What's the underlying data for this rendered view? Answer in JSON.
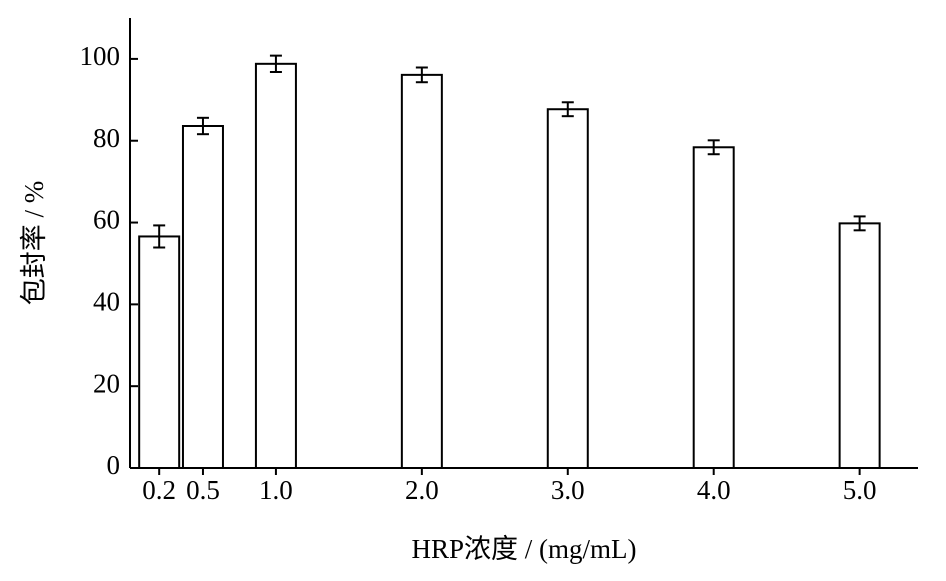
{
  "chart_data": {
    "type": "bar",
    "x_label": "HRP浓度 / (mg/mL)",
    "y_label": "包封率 / %",
    "x": [
      0.2,
      0.5,
      1.0,
      2.0,
      3.0,
      4.0,
      5.0
    ],
    "values": [
      56.6,
      83.6,
      98.8,
      96.1,
      87.7,
      78.4,
      59.8
    ],
    "errors": [
      2.7,
      2.0,
      2.0,
      1.8,
      1.7,
      1.7,
      1.7
    ],
    "color": "#ffffff",
    "xlim": [
      0,
      5.4
    ],
    "xticks": [
      {
        "value": 0.2,
        "label": "0.2"
      },
      {
        "value": 0.5,
        "label": "0.5"
      },
      {
        "value": 1,
        "label": "1.0"
      },
      {
        "value": 2,
        "label": "2.0"
      },
      {
        "value": 3,
        "label": "3.0"
      },
      {
        "value": 4,
        "label": "4.0"
      },
      {
        "value": 5,
        "label": "5.0"
      }
    ],
    "ylim": [
      0,
      110
    ],
    "yticks": [
      0,
      20,
      40,
      60,
      80,
      100
    ]
  }
}
